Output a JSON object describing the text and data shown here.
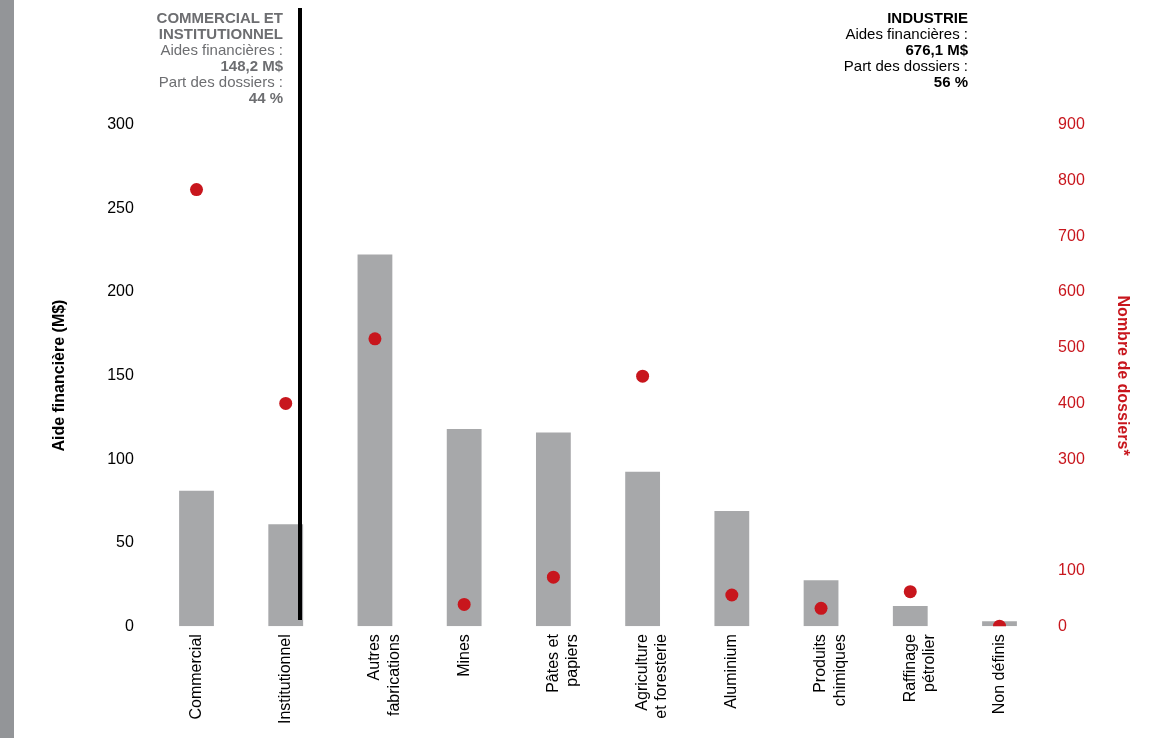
{
  "chart_data": {
    "type": "bar",
    "categories": [
      "Commercial",
      "Institutionnel",
      "Autres fabrications",
      "Mines",
      "Pâtes et papiers",
      "Agriculture et foresterie",
      "Aluminium",
      "Produits chimiques",
      "Raffinage pétrolier",
      "Non définis"
    ],
    "ylabel": "Aide financière (M$)",
    "y2label": "Nombre de dossiers*",
    "ylim": [
      0,
      300
    ],
    "yticks": [
      0,
      50,
      100,
      150,
      200,
      250,
      300
    ],
    "y2lim": [
      0,
      900
    ],
    "y2ticks": [
      0,
      100,
      300,
      400,
      500,
      600,
      700,
      800,
      900
    ],
    "series": [
      {
        "color": "#a7a8aa",
        "values": [
          81,
          61,
          222.5,
          118,
          116,
          92.5,
          69,
          27.5,
          12,
          3
        ]
      },
      {
        "type": "scatter",
        "axis": "y2",
        "color": "#c8161d",
        "x": [
          "Commercial",
          "Institutionnel",
          "Autres fabrications",
          "Mines",
          "Pâtes et papiers",
          "Agriculture et foresterie",
          "Aluminium",
          "Produits chimiques",
          "Raffinage pétrolier",
          "Non définis"
        ],
        "values": [
          784,
          400,
          516,
          39,
          88,
          449,
          56,
          32,
          62,
          0
        ]
      }
    ],
    "marker": "circle",
    "grid": false,
    "legend": false,
    "annotations": [
      "COMMERCIAL ET INSTITUTIONNEL",
      "Aides financières :",
      "148,2 M$",
      "Part des dossiers :",
      "44 %",
      "INDUSTRIE",
      "Aides financières :",
      "676,1 M$",
      "Part des dossiers :",
      "56 %"
    ]
  }
}
